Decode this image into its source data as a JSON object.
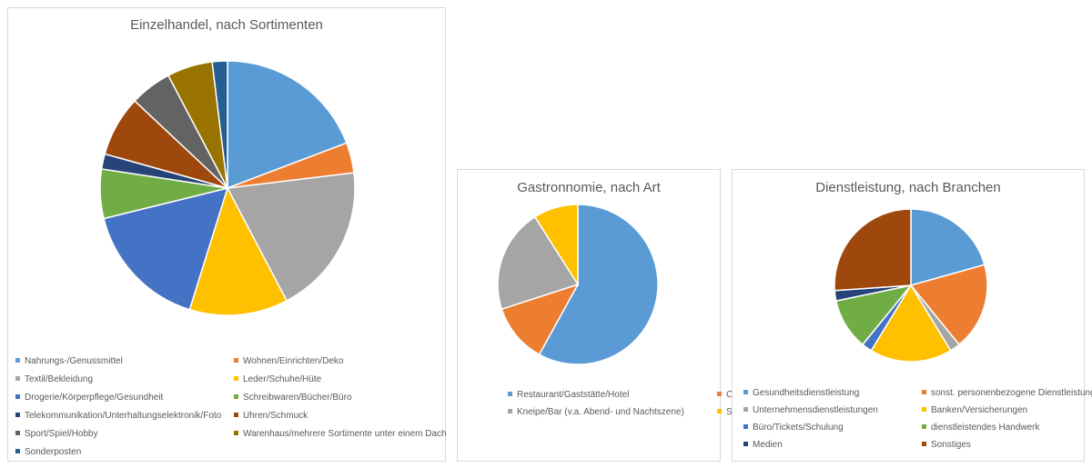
{
  "chart_data": [
    {
      "type": "pie",
      "title": "Einzelhandel, nach Sortimenten",
      "categories": [
        "Nahrungs-/Genussmittel",
        "Wohnen/Einrichten/Deko",
        "Textil/Bekleidung",
        "Leder/Schuhe/Hüte",
        "Drogerie/Körperpflege/Gesundheit",
        "Schreibwaren/Bücher/Büro",
        "Telekommunikation/Unterhaltungselektronik/Foto",
        "Uhren/Schmuck",
        "Sport/Spiel/Hobby",
        "Warenhaus/mehrere Sortimente unter einem Dach",
        "Sonderposten"
      ],
      "values": [
        20,
        4,
        20,
        13,
        17,
        6.5,
        2,
        8,
        5.5,
        6,
        2
      ],
      "colors": [
        "#5b9bd5",
        "#ed7d31",
        "#a5a5a5",
        "#ffc000",
        "#4472c4",
        "#70ad47",
        "#264478",
        "#9e480e",
        "#636363",
        "#997300",
        "#255e91"
      ],
      "legend": "bottom"
    },
    {
      "type": "pie",
      "title": "Gastronnomie, nach Art",
      "categories": [
        "Restaurant/Gaststätte/Hotel",
        "Café/Bistro (v.a. Tagesbetrieb)",
        "Kneipe/Bar (v.a. Abend- und Nachtszene)",
        "Sonstiges"
      ],
      "values": [
        58,
        12,
        21,
        9
      ],
      "colors": [
        "#5b9bd5",
        "#ed7d31",
        "#a5a5a5",
        "#ffc000"
      ],
      "legend": "bottom"
    },
    {
      "type": "pie",
      "title": "Dienstleistung, nach Branchen",
      "categories": [
        "Gesundheitsdienstleistung",
        "sonst. personenbezogene Dienstleistung",
        "Unternehmensdienstleistungen",
        "Banken/Versicherungen",
        "Büro/Tickets/Schulung",
        "dienstleistendes Handwerk",
        "Medien",
        "Sonstiges"
      ],
      "values": [
        19,
        17,
        2,
        16,
        2,
        10,
        2,
        24
      ],
      "colors": [
        "#5b9bd5",
        "#ed7d31",
        "#a5a5a5",
        "#ffc000",
        "#4472c4",
        "#70ad47",
        "#264478",
        "#9e480e"
      ],
      "legend": "bottom"
    }
  ]
}
